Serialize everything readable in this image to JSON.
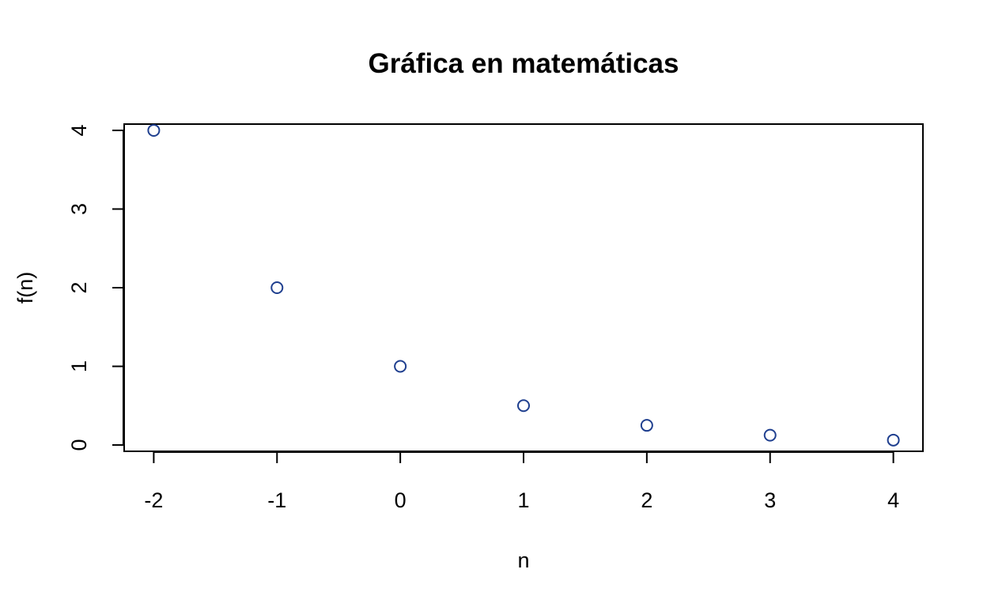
{
  "chart_data": {
    "type": "scatter",
    "title": "Gráfica en matemáticas",
    "xlabel": "n",
    "ylabel": "f(n)",
    "x_ticks": [
      "-2",
      "-1",
      "0",
      "1",
      "2",
      "3",
      "4"
    ],
    "y_ticks": [
      "0",
      "1",
      "2",
      "3",
      "4"
    ],
    "xlim": [
      -2.24,
      4.24
    ],
    "ylim": [
      -0.08,
      4.08
    ],
    "grid": false,
    "legend": "none",
    "series": [
      {
        "x": [
          -2,
          -1,
          0,
          1,
          2,
          3,
          4
        ],
        "y": [
          4,
          2,
          1,
          0.5,
          0.25,
          0.125,
          0.0625
        ],
        "color": "#1f3f8f",
        "marker": "open-circle"
      }
    ]
  }
}
